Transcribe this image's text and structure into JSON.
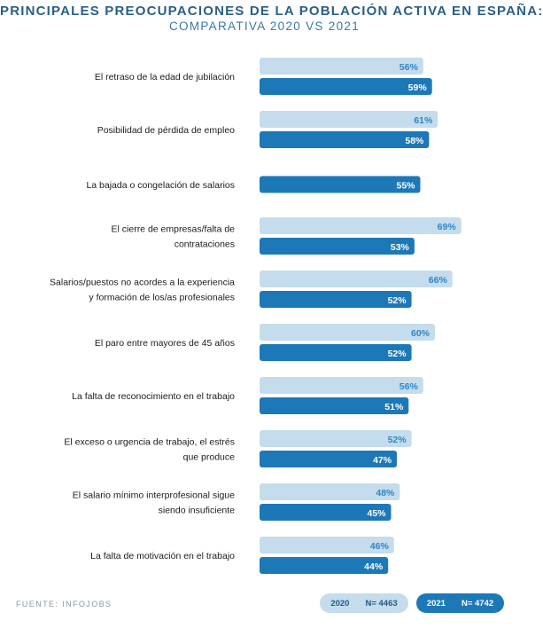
{
  "header": {
    "title": "PRINCIPALES PREOCUPACIONES DE LA POBLACIÓN ACTIVA EN ESPAÑA:",
    "subtitle": "COMPARATIVA 2020 VS 2021"
  },
  "footer": {
    "source": "FUENTE: INFOJOBS"
  },
  "legend": {
    "y2020_year": "2020",
    "y2020_n": "N= 4463",
    "y2021_year": "2021",
    "y2021_n": "N= 4742"
  },
  "colors": {
    "light": "#c4dcec",
    "dark": "#1d78b8",
    "light_text": "#2f86c6",
    "dark_text": "#ffffff",
    "label": "#1b1b1b"
  },
  "chart_data": {
    "type": "bar",
    "orientation": "horizontal",
    "title": "PRINCIPALES PREOCUPACIONES DE LA POBLACIÓN ACTIVA EN ESPAÑA: COMPARATIVA 2020 VS 2021",
    "unit": "%",
    "categories": [
      [
        "El retraso de la edad de jubilación"
      ],
      [
        "Posibilidad de pérdida de empleo"
      ],
      [
        "La bajada o congelación de salarios"
      ],
      [
        "El cierre de empresas/falta de",
        "contrataciones"
      ],
      [
        "Salarios/puestos no acordes a la experiencia",
        "y formación de los/as profesionales"
      ],
      [
        "El paro entre mayores de 45 años"
      ],
      [
        "La falta de reconocimiento en el trabajo"
      ],
      [
        "El exceso o urgencia de trabajo, el estrés",
        "que produce"
      ],
      [
        "El salario mínimo interprofesional sigue",
        "siendo insuficiente"
      ],
      [
        "La falta de motivación en el trabajo"
      ]
    ],
    "series": [
      {
        "name": "2020",
        "values": [
          56,
          61,
          null,
          69,
          66,
          60,
          56,
          52,
          48,
          46
        ]
      },
      {
        "name": "2021",
        "values": [
          59,
          58,
          55,
          53,
          52,
          52,
          51,
          47,
          45,
          44
        ]
      }
    ],
    "xlim": [
      0,
      70
    ],
    "legend_position": "bottom-right",
    "grid": false
  }
}
